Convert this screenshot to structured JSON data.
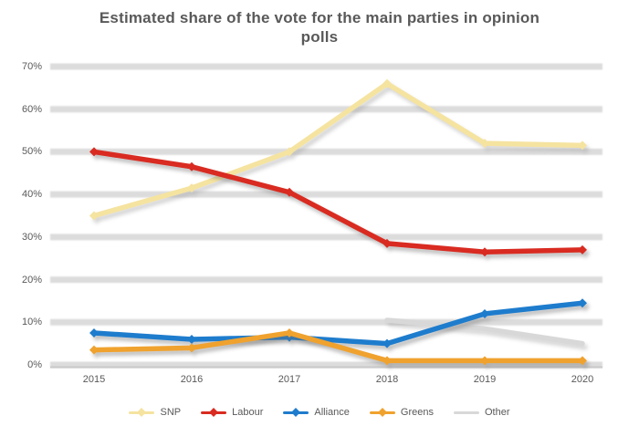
{
  "title": {
    "line1": "Estimated share of the vote for the main parties in opinion",
    "line2": "polls"
  },
  "colors": {
    "background": "#ffffff",
    "text": "#595959",
    "gridline": "#dcdcdc",
    "axis_line": "#c9c9c9"
  },
  "chart_data": {
    "type": "line",
    "title": "Estimated share of the vote for the main parties in opinion polls",
    "categories": [
      "2015",
      "2016",
      "2017",
      "2018",
      "2019",
      "2020"
    ],
    "series": [
      {
        "name": "SNP",
        "color": "#f5e3a0",
        "marker": "diamond",
        "values": [
          35,
          41.5,
          50,
          66,
          52,
          51.5
        ]
      },
      {
        "name": "Labour",
        "color": "#d92b21",
        "marker": "diamond",
        "values": [
          50,
          46.5,
          40.5,
          28.5,
          26.5,
          27
        ]
      },
      {
        "name": "Alliance",
        "color": "#1e7ccd",
        "marker": "diamond",
        "values": [
          7.5,
          6,
          6.5,
          5,
          12,
          14.5
        ]
      },
      {
        "name": "Greens",
        "color": "#f0a22e",
        "marker": "diamond",
        "values": [
          3.5,
          4,
          7.5,
          1,
          1,
          1
        ]
      },
      {
        "name": "Other",
        "color": "#d8d8d8",
        "marker": "none",
        "values": [
          null,
          null,
          null,
          10.5,
          8.5,
          5
        ]
      }
    ],
    "y_axis": {
      "min": 0,
      "max": 70,
      "ticks": [
        {
          "label": "0%",
          "value": 0
        },
        {
          "label": "10%",
          "value": 10
        },
        {
          "label": "20%",
          "value": 20
        },
        {
          "label": "30%",
          "value": 30
        },
        {
          "label": "40%",
          "value": 40
        },
        {
          "label": "50%",
          "value": 50
        },
        {
          "label": "60%",
          "value": 60
        },
        {
          "label": "70%",
          "value": 70
        }
      ]
    },
    "x_axis": {
      "labels": [
        "2015",
        "2016",
        "2017",
        "2018",
        "2019",
        "2020"
      ]
    },
    "legend_position": "bottom",
    "grid": true
  }
}
